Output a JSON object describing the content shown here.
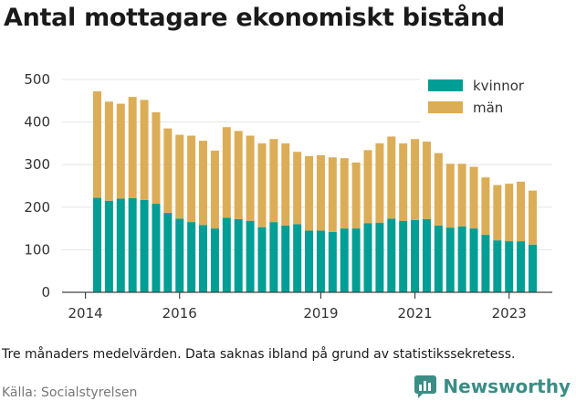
{
  "title": "Antal mottagare ekonomiskt bistånd",
  "footnote": "Tre månaders medelvärden. Data saknas ibland på grund av statistikssekretess.",
  "source": "Källa: Socialstyrelsen",
  "brand": {
    "name": "Newsworthy",
    "icon": "newsworthy-chart-logo-icon",
    "color": "#3a8e86"
  },
  "chart_data": {
    "type": "bar",
    "stacked": true,
    "x": [
      "2014-Q2",
      "2014-Q3",
      "2014-Q4",
      "2015-Q1",
      "2015-Q2",
      "2015-Q3",
      "2015-Q4",
      "2016-Q1",
      "2016-Q2",
      "2016-Q3",
      "2016-Q4",
      "2017-Q1",
      "2017-Q2",
      "2017-Q3",
      "2017-Q4",
      "2018-Q1",
      "2018-Q2",
      "2018-Q3",
      "2018-Q4",
      "2019-Q1",
      "2019-Q2",
      "2019-Q3",
      "2019-Q4",
      "2020-Q1",
      "2020-Q2",
      "2020-Q3",
      "2020-Q4",
      "2021-Q1",
      "2021-Q2",
      "2021-Q3",
      "2021-Q4",
      "2022-Q1",
      "2022-Q2",
      "2022-Q3",
      "2022-Q4",
      "2023-Q1",
      "2023-Q2",
      "2023-Q3"
    ],
    "series": [
      {
        "name": "kvinnor",
        "color": "#009e94",
        "values": [
          222,
          215,
          220,
          221,
          217,
          208,
          187,
          173,
          165,
          158,
          150,
          175,
          172,
          168,
          153,
          165,
          157,
          160,
          145,
          145,
          142,
          150,
          150,
          162,
          163,
          173,
          168,
          170,
          172,
          157,
          152,
          155,
          150,
          135,
          122,
          120,
          120,
          112
        ]
      },
      {
        "name": "män",
        "color": "#dcad57",
        "values": [
          250,
          233,
          223,
          238,
          235,
          215,
          198,
          197,
          203,
          198,
          183,
          213,
          207,
          200,
          197,
          195,
          193,
          170,
          175,
          177,
          175,
          165,
          155,
          172,
          187,
          193,
          182,
          190,
          182,
          170,
          150,
          147,
          145,
          135,
          130,
          135,
          140,
          127
        ]
      }
    ],
    "x_ticks": [
      "2014",
      "2016",
      "2019",
      "2021",
      "2023"
    ],
    "y_ticks": [
      0,
      100,
      200,
      300,
      400,
      500
    ],
    "ylim": [
      0,
      500
    ],
    "legend_position": "top-right",
    "grid": "horizontal"
  }
}
